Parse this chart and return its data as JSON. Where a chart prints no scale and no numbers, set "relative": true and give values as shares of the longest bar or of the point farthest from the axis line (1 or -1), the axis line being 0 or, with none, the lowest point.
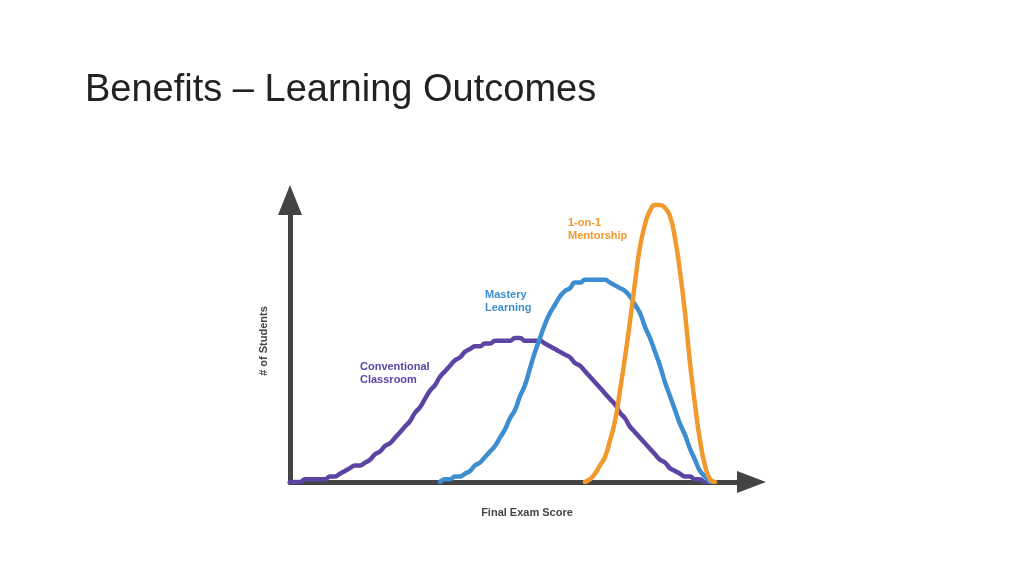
{
  "chart_data": {
    "type": "line",
    "title": "Benefits – Learning Outcomes",
    "xlabel": "Final Exam Score",
    "ylabel": "# of Students",
    "relative": true,
    "categories": [
      null,
      null,
      null,
      null,
      null,
      null,
      null,
      null,
      null,
      null,
      null,
      null,
      null,
      null,
      null,
      null,
      null,
      null,
      null,
      null,
      null,
      null,
      null,
      null,
      null,
      null,
      null,
      null,
      null,
      null,
      null,
      null,
      null,
      null,
      null,
      null,
      null,
      null,
      null,
      null,
      null,
      null,
      null,
      null,
      null,
      null,
      null,
      null,
      null,
      null,
      null,
      null,
      null,
      null,
      null,
      null,
      null,
      null,
      null,
      null,
      null,
      null,
      null,
      null,
      null,
      null,
      null,
      null,
      null,
      null,
      null,
      null,
      null,
      null,
      null,
      null,
      null,
      null,
      null,
      null,
      null,
      null,
      null,
      null,
      null,
      null,
      null,
      null,
      null,
      null,
      null,
      null,
      null
    ],
    "series": [
      {
        "name": "Conventional Classroom",
        "color": "#5c44a4",
        "values": [
          0,
          0,
          0,
          0.01,
          0.01,
          0.01,
          0.01,
          0.01,
          0.02,
          0.02,
          0.03,
          0.04,
          0.05,
          0.06,
          0.06,
          0.07,
          0.08,
          0.1,
          0.11,
          0.13,
          0.14,
          0.16,
          0.18,
          0.2,
          0.22,
          0.25,
          0.27,
          0.3,
          0.33,
          0.35,
          0.38,
          0.4,
          0.42,
          0.44,
          0.45,
          0.47,
          0.48,
          0.49,
          0.49,
          0.5,
          0.5,
          0.51,
          0.51,
          0.51,
          0.51,
          0.52,
          0.52,
          0.51,
          0.51,
          0.51,
          0.51,
          0.5,
          0.49,
          0.48,
          0.47,
          0.46,
          0.45,
          0.43,
          0.42,
          0.4,
          0.38,
          0.36,
          0.34,
          0.32,
          0.3,
          0.28,
          0.25,
          0.23,
          0.2,
          0.18,
          0.16,
          0.14,
          0.12,
          0.1,
          0.08,
          0.07,
          0.05,
          0.04,
          0.03,
          0.02,
          0.02,
          0.01,
          0.01,
          0,
          0,
          null,
          null,
          null,
          null,
          null,
          null,
          null,
          null
        ]
      },
      {
        "name": "Mastery Learning",
        "color": "#3d8dd1",
        "values": [
          null,
          null,
          null,
          null,
          null,
          null,
          null,
          null,
          null,
          null,
          null,
          null,
          null,
          null,
          null,
          null,
          null,
          null,
          null,
          null,
          null,
          null,
          null,
          null,
          null,
          null,
          null,
          null,
          null,
          null,
          0,
          0.01,
          0.01,
          0.02,
          0.02,
          0.03,
          0.04,
          0.06,
          0.07,
          0.09,
          0.11,
          0.13,
          0.16,
          0.19,
          0.23,
          0.26,
          0.31,
          0.35,
          0.41,
          0.47,
          0.52,
          0.57,
          0.61,
          0.64,
          0.67,
          0.69,
          0.7,
          0.72,
          0.72,
          0.73,
          0.73,
          0.73,
          0.73,
          0.73,
          0.72,
          0.71,
          0.7,
          0.69,
          0.67,
          0.64,
          0.61,
          0.56,
          0.52,
          0.47,
          0.42,
          0.36,
          0.31,
          0.26,
          0.21,
          0.17,
          0.12,
          0.08,
          0.04,
          0.02,
          0,
          null,
          null,
          null,
          null,
          null,
          null,
          null,
          null
        ]
      },
      {
        "name": "1-on-1 Mentorship",
        "color": "#f2992e",
        "values": [
          null,
          null,
          null,
          null,
          null,
          null,
          null,
          null,
          null,
          null,
          null,
          null,
          null,
          null,
          null,
          null,
          null,
          null,
          null,
          null,
          null,
          null,
          null,
          null,
          null,
          null,
          null,
          null,
          null,
          null,
          null,
          null,
          null,
          null,
          null,
          null,
          null,
          null,
          null,
          null,
          null,
          null,
          null,
          null,
          null,
          null,
          null,
          null,
          null,
          null,
          null,
          null,
          null,
          null,
          null,
          null,
          null,
          null,
          null,
          0,
          0.01,
          0.03,
          0.06,
          0.09,
          0.15,
          0.22,
          0.33,
          0.45,
          0.58,
          0.72,
          0.85,
          0.93,
          0.98,
          1,
          1,
          0.99,
          0.96,
          0.88,
          0.76,
          0.61,
          0.43,
          0.28,
          0.15,
          0.06,
          0.01,
          0,
          null,
          null,
          null,
          null,
          null,
          null,
          null
        ]
      }
    ]
  }
}
